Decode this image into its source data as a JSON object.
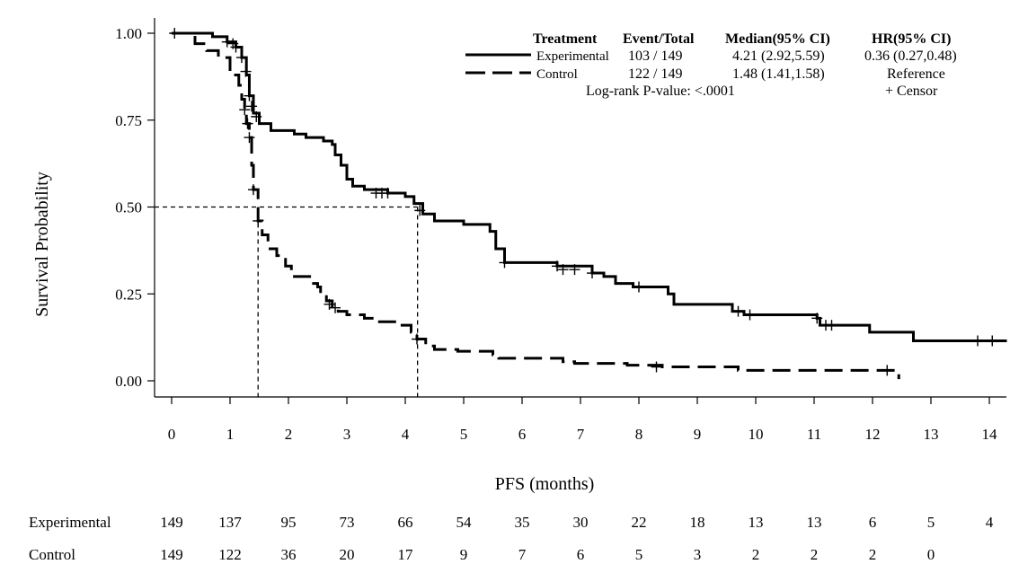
{
  "chart_data": {
    "type": "line",
    "subtype": "kaplan-meier",
    "title": "",
    "xlabel": "PFS (months)",
    "ylabel": "Survival Probability",
    "xlim": [
      0,
      14.3
    ],
    "ylim": [
      0,
      1
    ],
    "x_ticks": [
      "0",
      "1",
      "2",
      "3",
      "4",
      "5",
      "6",
      "7",
      "8",
      "9",
      "10",
      "11",
      "12",
      "13",
      "14"
    ],
    "y_ticks": [
      "0.00",
      "0.25",
      "0.50",
      "0.75",
      "1.00"
    ],
    "median_reference": {
      "y": 0.5,
      "medians": [
        1.48,
        4.21
      ]
    },
    "series": [
      {
        "name": "Experimental",
        "style": "solid",
        "points": [
          [
            0,
            1.0
          ],
          [
            0.7,
            0.99
          ],
          [
            0.95,
            0.975
          ],
          [
            1.1,
            0.96
          ],
          [
            1.2,
            0.93
          ],
          [
            1.28,
            0.88
          ],
          [
            1.33,
            0.82
          ],
          [
            1.4,
            0.77
          ],
          [
            1.5,
            0.74
          ],
          [
            1.7,
            0.72
          ],
          [
            2.1,
            0.71
          ],
          [
            2.3,
            0.7
          ],
          [
            2.6,
            0.69
          ],
          [
            2.75,
            0.68
          ],
          [
            2.8,
            0.65
          ],
          [
            2.9,
            0.62
          ],
          [
            3.0,
            0.58
          ],
          [
            3.1,
            0.56
          ],
          [
            3.3,
            0.55
          ],
          [
            3.7,
            0.54
          ],
          [
            4.0,
            0.53
          ],
          [
            4.15,
            0.51
          ],
          [
            4.3,
            0.48
          ],
          [
            4.5,
            0.46
          ],
          [
            5.0,
            0.45
          ],
          [
            5.45,
            0.43
          ],
          [
            5.55,
            0.38
          ],
          [
            5.7,
            0.34
          ],
          [
            6.0,
            0.34
          ],
          [
            6.6,
            0.33
          ],
          [
            7.2,
            0.31
          ],
          [
            7.4,
            0.3
          ],
          [
            7.6,
            0.28
          ],
          [
            7.9,
            0.27
          ],
          [
            8.5,
            0.25
          ],
          [
            8.6,
            0.22
          ],
          [
            9.6,
            0.2
          ],
          [
            9.8,
            0.19
          ],
          [
            11.05,
            0.18
          ],
          [
            11.1,
            0.16
          ],
          [
            11.9,
            0.16
          ],
          [
            11.95,
            0.14
          ],
          [
            12.65,
            0.14
          ],
          [
            12.7,
            0.115
          ],
          [
            14.3,
            0.115
          ]
        ],
        "censors": [
          [
            0.05,
            1.0
          ],
          [
            0.95,
            0.975
          ],
          [
            1.05,
            0.97
          ],
          [
            1.1,
            0.96
          ],
          [
            1.2,
            0.93
          ],
          [
            1.27,
            0.89
          ],
          [
            1.33,
            0.82
          ],
          [
            1.37,
            0.79
          ],
          [
            1.45,
            0.76
          ],
          [
            3.5,
            0.54
          ],
          [
            3.6,
            0.54
          ],
          [
            3.7,
            0.54
          ],
          [
            4.25,
            0.49
          ],
          [
            5.7,
            0.34
          ],
          [
            6.6,
            0.33
          ],
          [
            6.7,
            0.32
          ],
          [
            6.9,
            0.32
          ],
          [
            7.2,
            0.31
          ],
          [
            8.0,
            0.27
          ],
          [
            9.7,
            0.2
          ],
          [
            9.9,
            0.19
          ],
          [
            11.05,
            0.18
          ],
          [
            11.2,
            0.16
          ],
          [
            11.3,
            0.16
          ],
          [
            13.8,
            0.115
          ],
          [
            14.05,
            0.115
          ]
        ]
      },
      {
        "name": "Control",
        "style": "dashed",
        "points": [
          [
            0,
            1.0
          ],
          [
            0.4,
            0.97
          ],
          [
            0.6,
            0.95
          ],
          [
            0.8,
            0.93
          ],
          [
            1.0,
            0.88
          ],
          [
            1.15,
            0.85
          ],
          [
            1.2,
            0.81
          ],
          [
            1.25,
            0.78
          ],
          [
            1.28,
            0.74
          ],
          [
            1.33,
            0.7
          ],
          [
            1.37,
            0.62
          ],
          [
            1.4,
            0.55
          ],
          [
            1.48,
            0.46
          ],
          [
            1.55,
            0.42
          ],
          [
            1.65,
            0.38
          ],
          [
            1.8,
            0.36
          ],
          [
            1.95,
            0.33
          ],
          [
            2.05,
            0.3
          ],
          [
            2.4,
            0.28
          ],
          [
            2.5,
            0.27
          ],
          [
            2.55,
            0.25
          ],
          [
            2.65,
            0.23
          ],
          [
            2.75,
            0.21
          ],
          [
            2.85,
            0.2
          ],
          [
            3.0,
            0.19
          ],
          [
            3.3,
            0.18
          ],
          [
            3.5,
            0.17
          ],
          [
            3.9,
            0.16
          ],
          [
            4.1,
            0.14
          ],
          [
            4.2,
            0.12
          ],
          [
            4.35,
            0.1
          ],
          [
            4.5,
            0.09
          ],
          [
            4.9,
            0.085
          ],
          [
            5.5,
            0.075
          ],
          [
            5.6,
            0.065
          ],
          [
            6.7,
            0.055
          ],
          [
            6.9,
            0.05
          ],
          [
            7.8,
            0.045
          ],
          [
            8.4,
            0.04
          ],
          [
            9.7,
            0.03
          ],
          [
            12.45,
            0.03
          ],
          [
            12.45,
            0.005
          ]
        ],
        "censors": [
          [
            1.25,
            0.78
          ],
          [
            1.3,
            0.74
          ],
          [
            1.33,
            0.7
          ],
          [
            1.4,
            0.55
          ],
          [
            1.48,
            0.46
          ],
          [
            2.7,
            0.22
          ],
          [
            2.8,
            0.21
          ],
          [
            4.2,
            0.12
          ],
          [
            8.3,
            0.04
          ],
          [
            12.25,
            0.03
          ]
        ]
      }
    ],
    "legend": {
      "position": "top-right",
      "headers": [
        "Treatment",
        "Event/Total",
        "Median(95% CI)",
        "HR(95% CI)"
      ],
      "rows": [
        {
          "name": "Experimental",
          "events": "103 / 149",
          "median": "4.21 (2.92,5.59)",
          "hr": "0.36 (0.27,0.48)"
        },
        {
          "name": "Control",
          "events": "122 / 149",
          "median": "1.48 (1.41,1.58)",
          "hr": "Reference"
        }
      ],
      "pvalue": "Log-rank P-value: <.0001",
      "censor_note": "+  Censor"
    },
    "at_risk": {
      "rows": [
        {
          "label": "Experimental",
          "values": [
            "149",
            "137",
            "95",
            "73",
            "66",
            "54",
            "35",
            "30",
            "22",
            "18",
            "13",
            "13",
            "6",
            "5",
            "4"
          ]
        },
        {
          "label": "Control",
          "values": [
            "149",
            "122",
            "36",
            "20",
            "17",
            "9",
            "7",
            "6",
            "5",
            "3",
            "2",
            "2",
            "2",
            "0"
          ]
        }
      ]
    }
  }
}
